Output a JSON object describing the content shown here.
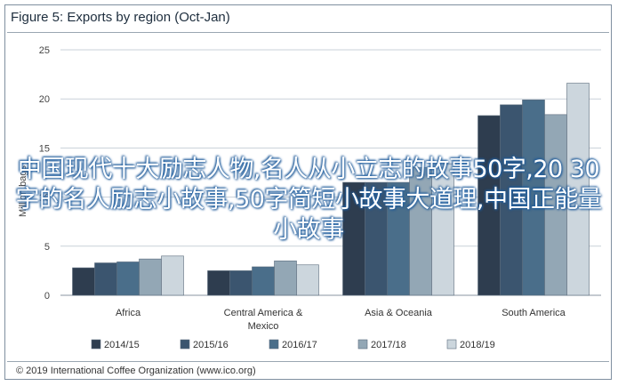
{
  "chart_data": {
    "type": "bar",
    "title": "Figure 5: Exports by region (Oct-Jan)",
    "ylabel": "Million bags",
    "ylim": [
      0,
      25
    ],
    "yticks": [
      0,
      5,
      10,
      15,
      20,
      25
    ],
    "categories": [
      "Africa",
      "Central America & Mexico",
      "Asia & Oceania",
      "South America"
    ],
    "category_lines": [
      [
        "Africa"
      ],
      [
        "Central America &",
        "Mexico"
      ],
      [
        "Asia & Oceania"
      ],
      [
        "South America"
      ]
    ],
    "series": [
      {
        "name": "2014/15",
        "color": "#2e3d4f",
        "values": [
          2.8,
          2.5,
          11.5,
          18.3
        ]
      },
      {
        "name": "2015/16",
        "color": "#3b556f",
        "values": [
          3.3,
          2.5,
          11.5,
          19.4
        ]
      },
      {
        "name": "2016/17",
        "color": "#4a6e8a",
        "values": [
          3.4,
          2.9,
          11.5,
          19.9
        ]
      },
      {
        "name": "2017/18",
        "color": "#93a7b5",
        "values": [
          3.7,
          3.5,
          13.0,
          18.4
        ]
      },
      {
        "name": "2018/19",
        "color": "#ccd6dd",
        "values": [
          4.0,
          3.1,
          13.4,
          21.6
        ]
      }
    ],
    "grid": true,
    "legend": "bottom"
  },
  "source": "© 2019 International Coffee Organization (www.ico.org)",
  "overlay_text": "中国现代十大励志人物,名人从小立志的故事50字,20 30字的名人励志小故事,50字简短小故事大道理,中国正能量小故事"
}
